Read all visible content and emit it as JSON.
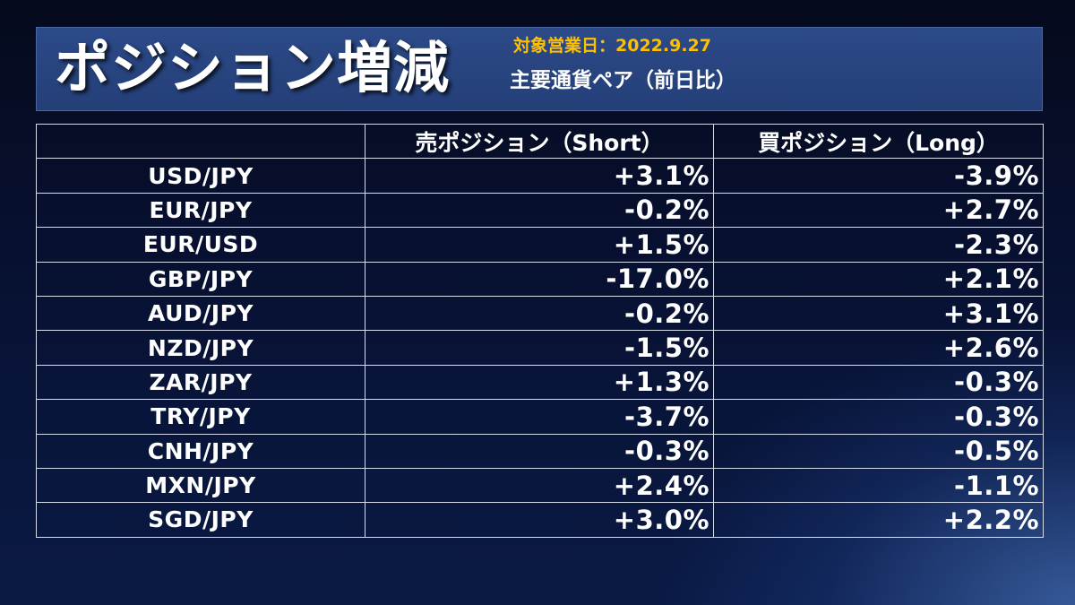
{
  "header": {
    "title": "ポジション増減",
    "date_line": "対象営業日：2022.9.27",
    "subtitle": "主要通貨ペア（前日比）"
  },
  "table": {
    "columns": [
      "",
      "売ポジション（Short）",
      "買ポジション（Long）"
    ],
    "rows": [
      {
        "pair": "USD/JPY",
        "short": "+3.1%",
        "long": "-3.9%"
      },
      {
        "pair": "EUR/JPY",
        "short": "-0.2%",
        "long": "+2.7%"
      },
      {
        "pair": "EUR/USD",
        "short": "+1.5%",
        "long": "-2.3%"
      },
      {
        "pair": "GBP/JPY",
        "short": "-17.0%",
        "long": "+2.1%"
      },
      {
        "pair": "AUD/JPY",
        "short": "-0.2%",
        "long": "+3.1%"
      },
      {
        "pair": "NZD/JPY",
        "short": "-1.5%",
        "long": "+2.6%"
      },
      {
        "pair": "ZAR/JPY",
        "short": "+1.3%",
        "long": "-0.3%"
      },
      {
        "pair": "TRY/JPY",
        "short": "-3.7%",
        "long": "-0.3%"
      },
      {
        "pair": "CNH/JPY",
        "short": "-0.3%",
        "long": "-0.5%"
      },
      {
        "pair": "MXN/JPY",
        "short": "+2.4%",
        "long": "-1.1%"
      },
      {
        "pair": "SGD/JPY",
        "short": "+3.0%",
        "long": "+2.2%"
      }
    ]
  },
  "colors": {
    "background": "#071030",
    "header_bar": "#2c4a88",
    "date_accent": "#ffc000",
    "text": "#ffffff",
    "grid_lines": "#d6dcea"
  }
}
